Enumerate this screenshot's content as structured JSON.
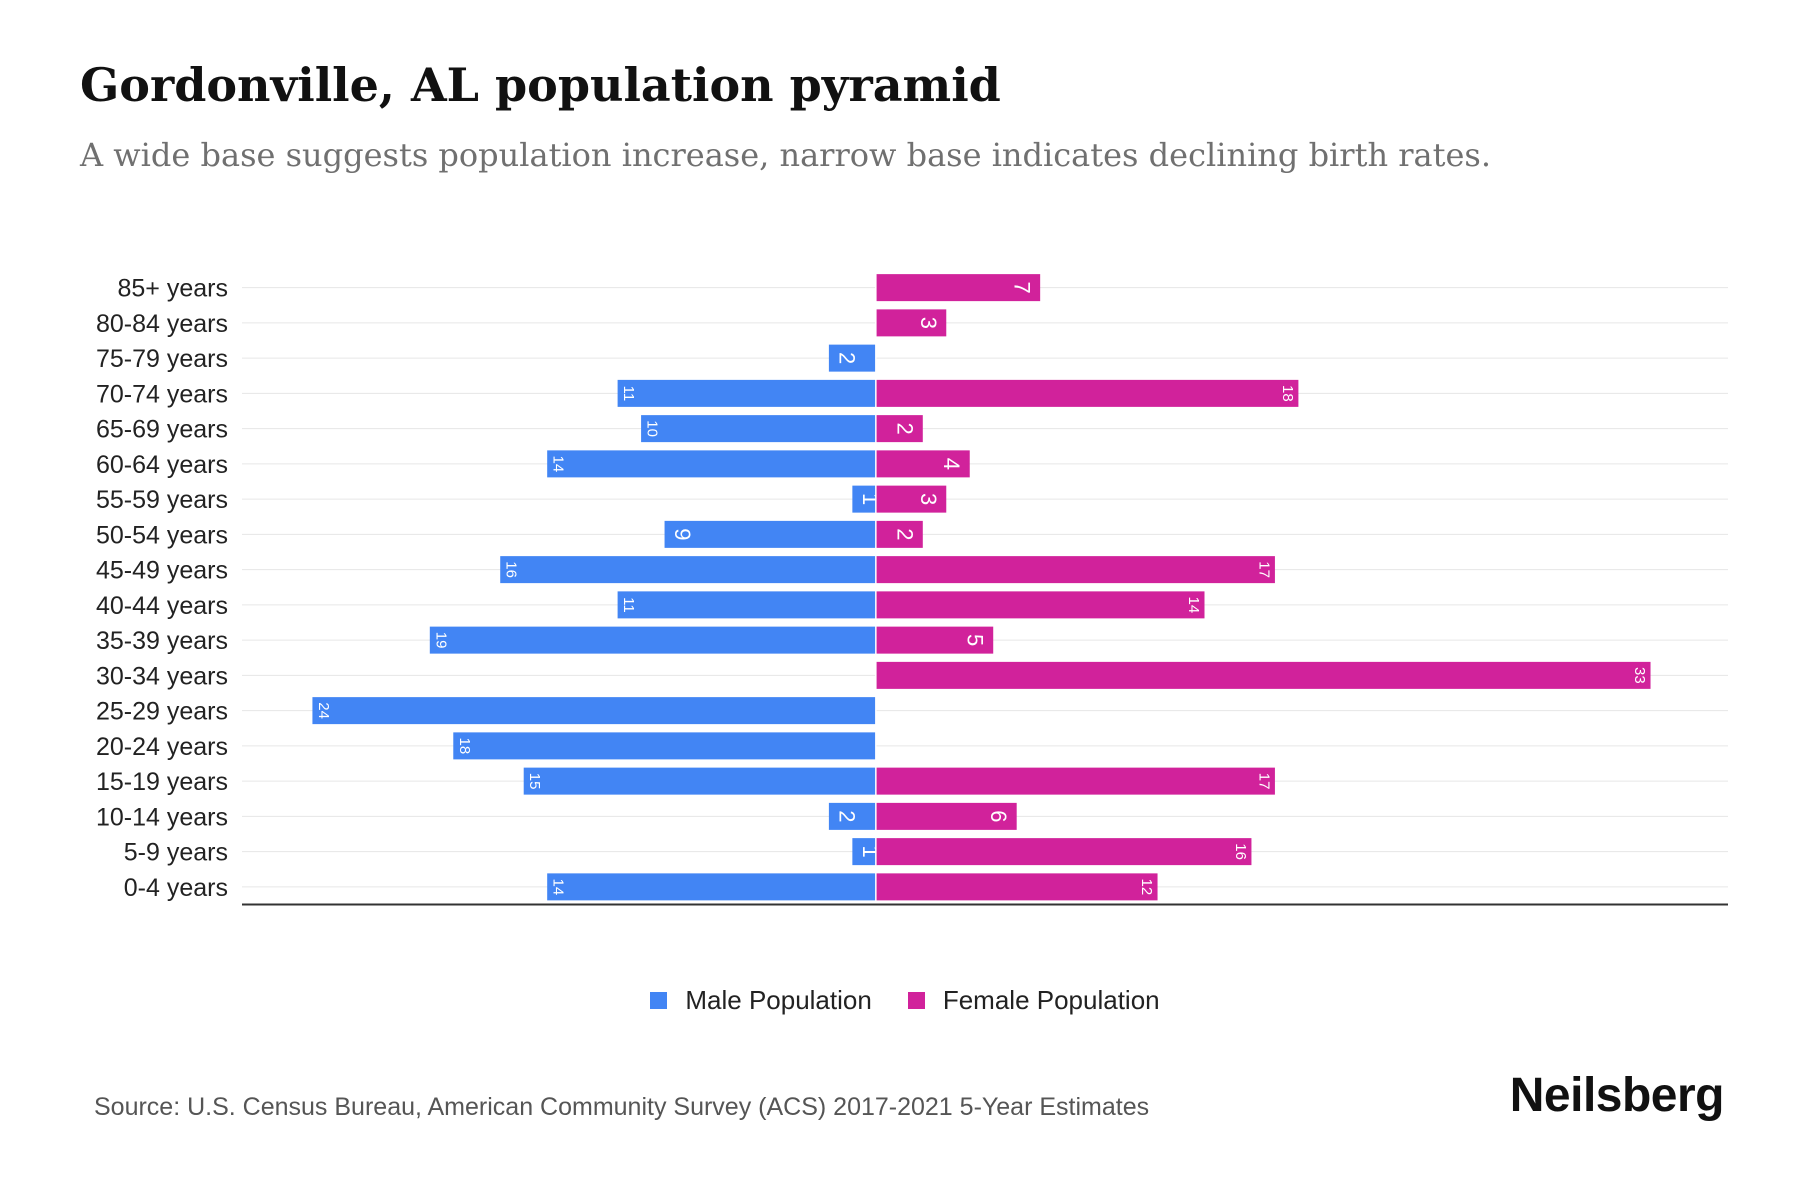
{
  "header": {
    "title": "Gordonville, AL population pyramid",
    "subtitle": "A wide base suggests population increase, narrow base indicates declining birth rates."
  },
  "legend": {
    "male_label": "Male Population",
    "female_label": "Female Population"
  },
  "footer": {
    "source": "Source: U.S. Census Bureau, American Community Survey (ACS) 2017-2021 5-Year Estimates",
    "brand": "Neilsberg"
  },
  "colors": {
    "male": "#4285f4",
    "female": "#d1229b",
    "grid": "#e6e6e6",
    "axis": "#333333"
  },
  "chart_data": {
    "type": "bar",
    "orientation": "horizontal-population-pyramid",
    "title": "Gordonville, AL population pyramid",
    "categories": [
      "85+ years",
      "80-84 years",
      "75-79 years",
      "70-74 years",
      "65-69 years",
      "60-64 years",
      "55-59 years",
      "50-54 years",
      "45-49 years",
      "40-44 years",
      "35-39 years",
      "30-34 years",
      "25-29 years",
      "20-24 years",
      "15-19 years",
      "10-14 years",
      "5-9 years",
      "0-4 years"
    ],
    "series": [
      {
        "name": "Male Population",
        "values": [
          0,
          0,
          2,
          11,
          10,
          14,
          1,
          9,
          16,
          11,
          19,
          0,
          24,
          18,
          15,
          2,
          1,
          14
        ]
      },
      {
        "name": "Female Population",
        "values": [
          7,
          3,
          0,
          18,
          2,
          4,
          3,
          2,
          17,
          14,
          5,
          33,
          0,
          0,
          17,
          6,
          16,
          12
        ]
      }
    ],
    "xlim": [
      -27,
      36.3
    ],
    "legend": "bottom-center",
    "grid": true
  }
}
